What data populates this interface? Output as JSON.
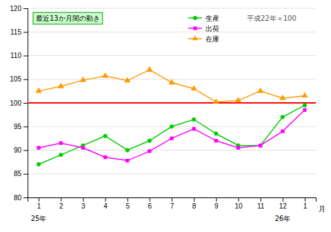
{
  "chart_data": {
    "type": "line",
    "title": "最近13か月間の動き",
    "title_box_color": "#ccffcc",
    "title_box_edge_color": "#009900",
    "note": "平成22年＝100",
    "xlabel": "月",
    "categories": [
      "1",
      "2",
      "3",
      "4",
      "5",
      "6",
      "7",
      "8",
      "9",
      "10",
      "11",
      "12",
      "1"
    ],
    "x_group_labels": [
      "25年",
      null,
      null,
      null,
      null,
      null,
      null,
      null,
      null,
      null,
      null,
      "26年",
      null
    ],
    "series": [
      {
        "name": "生産",
        "color": "#00cc00",
        "marker": "circle",
        "values": [
          87.0,
          89.0,
          91.0,
          93.0,
          90.0,
          92.0,
          95.0,
          96.5,
          93.5,
          91.0,
          91.0,
          97.0,
          99.5
        ]
      },
      {
        "name": "出荷",
        "color": "#ff00ff",
        "marker": "square",
        "values": [
          90.5,
          91.5,
          90.5,
          88.5,
          87.8,
          89.8,
          92.5,
          94.5,
          92.0,
          90.5,
          91.0,
          94.0,
          98.5
        ]
      },
      {
        "name": "在庫",
        "color": "#ff9900",
        "marker": "triangle",
        "values": [
          102.5,
          103.5,
          104.8,
          105.7,
          104.7,
          107.0,
          104.3,
          103.0,
          100.2,
          100.5,
          102.5,
          101.0,
          101.5
        ]
      }
    ],
    "reference_line": {
      "y": 100,
      "color": "#ff0000"
    },
    "ylim": [
      80,
      120
    ],
    "yticks": [
      80,
      85,
      90,
      95,
      100,
      105,
      110,
      115,
      120
    ],
    "grid": true,
    "legend": "upper right"
  }
}
